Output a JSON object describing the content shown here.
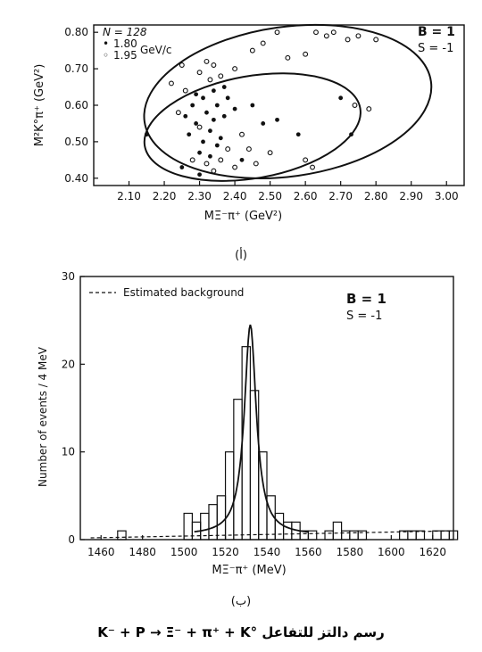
{
  "chart_data": [
    {
      "type": "scatter",
      "xlabel": "MΞ⁻π⁺ (GeV²)",
      "ylabel": "M²K°π⁺ (GeV²)",
      "xlim": [
        2.0,
        3.05
      ],
      "ylim": [
        0.38,
        0.82
      ],
      "xticks": [
        "2.10",
        "2.20",
        "2.30",
        "2.40",
        "2.50",
        "2.60",
        "2.70",
        "2.80",
        "2.90",
        "3.00"
      ],
      "yticks": [
        "0.40",
        "0.50",
        "0.60",
        "0.70",
        "0.80"
      ],
      "annotation_n": "N = 128",
      "legend": [
        {
          "marker": "•",
          "label": "1.80"
        },
        {
          "marker": "◦",
          "label": "1.95"
        }
      ],
      "legend_unit": "GeV/c",
      "quantum_b": "B = 1",
      "quantum_s": "S = -1",
      "panel_label": "(أ)",
      "series": [
        {
          "marker": "filled",
          "points": [
            [
              2.15,
              0.52
            ],
            [
              2.26,
              0.57
            ],
            [
              2.27,
              0.52
            ],
            [
              2.28,
              0.6
            ],
            [
              2.29,
              0.55
            ],
            [
              2.3,
              0.47
            ],
            [
              2.31,
              0.62
            ],
            [
              2.31,
              0.5
            ],
            [
              2.32,
              0.58
            ],
            [
              2.33,
              0.53
            ],
            [
              2.33,
              0.46
            ],
            [
              2.34,
              0.64
            ],
            [
              2.34,
              0.56
            ],
            [
              2.35,
              0.49
            ],
            [
              2.35,
              0.6
            ],
            [
              2.36,
              0.51
            ],
            [
              2.37,
              0.57
            ],
            [
              2.38,
              0.62
            ],
            [
              2.4,
              0.59
            ],
            [
              2.42,
              0.45
            ],
            [
              2.45,
              0.6
            ],
            [
              2.48,
              0.55
            ],
            [
              2.52,
              0.56
            ],
            [
              2.58,
              0.52
            ],
            [
              2.7,
              0.62
            ],
            [
              2.73,
              0.52
            ],
            [
              2.3,
              0.41
            ],
            [
              2.25,
              0.43
            ],
            [
              2.29,
              0.63
            ],
            [
              2.37,
              0.65
            ]
          ]
        },
        {
          "marker": "open",
          "points": [
            [
              2.22,
              0.66
            ],
            [
              2.25,
              0.71
            ],
            [
              2.3,
              0.69
            ],
            [
              2.32,
              0.72
            ],
            [
              2.33,
              0.67
            ],
            [
              2.34,
              0.71
            ],
            [
              2.36,
              0.68
            ],
            [
              2.4,
              0.7
            ],
            [
              2.45,
              0.75
            ],
            [
              2.48,
              0.77
            ],
            [
              2.52,
              0.8
            ],
            [
              2.55,
              0.73
            ],
            [
              2.6,
              0.74
            ],
            [
              2.63,
              0.8
            ],
            [
              2.66,
              0.79
            ],
            [
              2.68,
              0.8
            ],
            [
              2.72,
              0.78
            ],
            [
              2.75,
              0.79
            ],
            [
              2.8,
              0.78
            ],
            [
              2.36,
              0.45
            ],
            [
              2.38,
              0.48
            ],
            [
              2.4,
              0.43
            ],
            [
              2.42,
              0.52
            ],
            [
              2.44,
              0.48
            ],
            [
              2.46,
              0.44
            ],
            [
              2.5,
              0.47
            ],
            [
              2.6,
              0.45
            ],
            [
              2.62,
              0.43
            ],
            [
              2.74,
              0.6
            ],
            [
              2.78,
              0.59
            ],
            [
              2.32,
              0.44
            ],
            [
              2.34,
              0.42
            ],
            [
              2.28,
              0.45
            ],
            [
              2.3,
              0.54
            ],
            [
              2.26,
              0.64
            ],
            [
              2.24,
              0.58
            ]
          ]
        }
      ],
      "ellipses": [
        {
          "cx": 2.55,
          "cy": 0.61,
          "rx": 0.41,
          "ry": 0.205,
          "rotate": -8
        },
        {
          "cx": 2.45,
          "cy": 0.54,
          "rx": 0.31,
          "ry": 0.14,
          "rotate": -10
        }
      ]
    },
    {
      "type": "bar",
      "xlabel": "MΞ⁻π⁺ (MeV)",
      "ylabel": "Number of events / 4 MeV",
      "xlim": [
        1450,
        1630
      ],
      "ylim": [
        0,
        30
      ],
      "xticks": [
        1460,
        1480,
        1500,
        1520,
        1540,
        1560,
        1580,
        1600,
        1620
      ],
      "yticks": [
        0,
        10,
        20,
        30
      ],
      "legend_background": "Estimated background",
      "quantum_b": "B = 1",
      "quantum_s": "S = -1",
      "panel_label": "(ب)",
      "bin_width": 4,
      "bins": [
        [
          1468,
          1
        ],
        [
          1500,
          3
        ],
        [
          1504,
          2
        ],
        [
          1508,
          3
        ],
        [
          1512,
          4
        ],
        [
          1516,
          5
        ],
        [
          1520,
          10
        ],
        [
          1524,
          16
        ],
        [
          1528,
          22
        ],
        [
          1532,
          17
        ],
        [
          1536,
          10
        ],
        [
          1540,
          5
        ],
        [
          1544,
          3
        ],
        [
          1548,
          2
        ],
        [
          1552,
          2
        ],
        [
          1556,
          1
        ],
        [
          1560,
          1
        ],
        [
          1568,
          1
        ],
        [
          1572,
          2
        ],
        [
          1576,
          1
        ],
        [
          1580,
          1
        ],
        [
          1584,
          1
        ],
        [
          1604,
          1
        ],
        [
          1608,
          1
        ],
        [
          1612,
          1
        ],
        [
          1620,
          1
        ],
        [
          1624,
          1
        ],
        [
          1628,
          1
        ]
      ],
      "fit_peak": 1532,
      "fit_height": 24,
      "fit_width": 3.5
    }
  ],
  "caption": "K⁻ + P → Ξ⁻ + π⁺ + K° رسم دالتز للتفاعل"
}
